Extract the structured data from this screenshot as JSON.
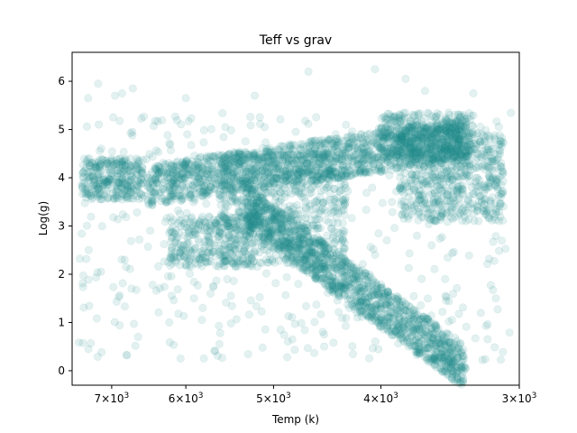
{
  "chart_data": {
    "type": "scatter",
    "title": "Teff vs grav",
    "xlabel": "Temp (k)",
    "ylabel": "Log(g)",
    "x_scale": "log",
    "x_inverted": true,
    "xlim": [
      7600,
      3000
    ],
    "ylim": [
      -0.3,
      6.6
    ],
    "x_ticks": [
      {
        "value": 7000,
        "mantissa": "7",
        "base": "10",
        "exp": "3"
      },
      {
        "value": 6000,
        "mantissa": "6",
        "base": "10",
        "exp": "3"
      },
      {
        "value": 5000,
        "mantissa": "5",
        "base": "10",
        "exp": "3"
      },
      {
        "value": 4000,
        "mantissa": "4",
        "base": "10",
        "exp": "3"
      },
      {
        "value": 3000,
        "mantissa": "3",
        "base": "10",
        "exp": "3"
      }
    ],
    "y_ticks": [
      0,
      1,
      2,
      3,
      4,
      5,
      6
    ],
    "point_color": "#238a8d",
    "point_alpha": 0.12,
    "grid": false,
    "legend": "none",
    "series": [
      {
        "density_regions": [
          {
            "description": "hot main-sequence clump",
            "temp_range": [
              7400,
              6500
            ],
            "logg_range": [
              3.6,
              4.4
            ]
          },
          {
            "description": "main sequence band",
            "temp_range": [
              6500,
              3300
            ],
            "logg_range": [
              3.8,
              5.2
            ]
          },
          {
            "description": "red giant branch",
            "temp_range": [
              5200,
              3300
            ],
            "logg_range": [
              0.0,
              3.5
            ]
          },
          {
            "description": "cool dwarf cloud",
            "temp_range": [
              4000,
              3100
            ],
            "logg_range": [
              3.0,
              5.5
            ]
          }
        ],
        "outlier_points": [
          {
            "x": 7350,
            "y": 5.65
          },
          {
            "x": 7200,
            "y": 5.95
          },
          {
            "x": 6950,
            "y": 5.7
          },
          {
            "x": 6850,
            "y": 5.75
          },
          {
            "x": 6700,
            "y": 5.85
          },
          {
            "x": 6000,
            "y": 5.65
          },
          {
            "x": 5200,
            "y": 5.7
          },
          {
            "x": 4650,
            "y": 6.2
          },
          {
            "x": 4050,
            "y": 6.25
          },
          {
            "x": 3800,
            "y": 6.05
          },
          {
            "x": 3650,
            "y": 5.8
          },
          {
            "x": 3300,
            "y": 5.75
          },
          {
            "x": 4500,
            "y": 0.75
          },
          {
            "x": 3150,
            "y": 1.5
          },
          {
            "x": 3250,
            "y": 1.2
          },
          {
            "x": 3200,
            "y": 3.2
          },
          {
            "x": 4200,
            "y": 1.1
          },
          {
            "x": 5900,
            "y": 1.5
          },
          {
            "x": 5700,
            "y": 1.6
          },
          {
            "x": 3500,
            "y": 1.9
          },
          {
            "x": 3450,
            "y": 1.05
          },
          {
            "x": 6200,
            "y": 2.35
          },
          {
            "x": 3600,
            "y": 2.6
          }
        ]
      }
    ]
  }
}
